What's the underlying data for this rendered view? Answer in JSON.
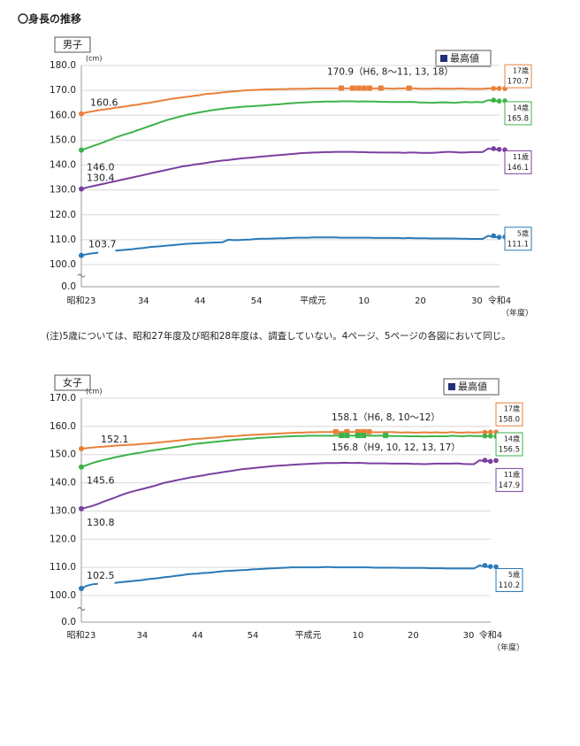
{
  "header": "〇身長の推移",
  "note": "(注)5歳については、昭和27年度及び昭和28年度は、調査していない。4ページ、5ページの各図において同じ。",
  "chart_data": [
    {
      "type": "line",
      "title": "男子",
      "y_unit": "(cm)",
      "x_unit": "（年度）",
      "max_legend": "最高値",
      "broken_axis": true,
      "grid": true,
      "ylim": [
        0,
        180
      ],
      "yticks": [
        {
          "value": 0,
          "label": "0.0"
        },
        {
          "value": 100,
          "label": "100.0"
        },
        {
          "value": 110,
          "label": "110.0"
        },
        {
          "value": 120,
          "label": "120.0"
        },
        {
          "value": 130,
          "label": "130.0"
        },
        {
          "value": 140,
          "label": "140.0"
        },
        {
          "value": 150,
          "label": "150.0"
        },
        {
          "value": 160,
          "label": "160.0"
        },
        {
          "value": 170,
          "label": "170.0"
        },
        {
          "value": 180,
          "label": "180.0"
        }
      ],
      "categories": [
        "昭和23",
        null,
        null,
        null,
        null,
        null,
        null,
        null,
        null,
        null,
        null,
        "34",
        null,
        null,
        null,
        null,
        null,
        null,
        null,
        null,
        null,
        "44",
        null,
        null,
        null,
        null,
        null,
        null,
        null,
        null,
        null,
        "54",
        null,
        null,
        null,
        null,
        null,
        null,
        null,
        null,
        null,
        "平成元",
        null,
        null,
        null,
        null,
        null,
        null,
        null,
        null,
        "10",
        null,
        null,
        null,
        null,
        null,
        null,
        null,
        null,
        null,
        "20",
        null,
        null,
        null,
        null,
        null,
        null,
        null,
        null,
        null,
        "30",
        null,
        null,
        null,
        "令和4"
      ],
      "series": [
        {
          "name": "17歳",
          "color": "#e8803a",
          "peak_note": "170.9（H6, 8～11, 13, 18）",
          "values": [
            160.6,
            161.2,
            161.6,
            162.0,
            162.3,
            162.6,
            163.0,
            163.3,
            163.6,
            164.0,
            164.3,
            164.7,
            165.0,
            165.4,
            165.8,
            166.2,
            166.6,
            166.9,
            167.2,
            167.5,
            167.8,
            168.1,
            168.5,
            168.7,
            168.9,
            169.2,
            169.4,
            169.6,
            169.8,
            170.0,
            170.1,
            170.2,
            170.3,
            170.4,
            170.4,
            170.5,
            170.5,
            170.6,
            170.6,
            170.7,
            170.7,
            170.8,
            170.8,
            170.8,
            170.8,
            170.8,
            170.9,
            170.8,
            170.9,
            170.9,
            170.9,
            170.9,
            170.8,
            170.9,
            170.8,
            170.7,
            170.8,
            170.8,
            170.9,
            170.8,
            170.7,
            170.7,
            170.7,
            170.8,
            170.7,
            170.7,
            170.7,
            170.8,
            170.7,
            170.6,
            170.6,
            170.6,
            170.8,
            170.8,
            170.7
          ]
        },
        {
          "name": "14歳",
          "color": "#3cb34a",
          "value_labels": {
            "0": "146.0"
          },
          "values": [
            146.0,
            146.8,
            147.6,
            148.4,
            149.2,
            150.1,
            151.0,
            151.8,
            152.5,
            153.2,
            154.0,
            154.8,
            155.6,
            156.4,
            157.2,
            158.0,
            158.6,
            159.2,
            159.8,
            160.3,
            160.8,
            161.2,
            161.6,
            162.0,
            162.3,
            162.6,
            162.9,
            163.1,
            163.3,
            163.5,
            163.6,
            163.8,
            163.9,
            164.1,
            164.3,
            164.4,
            164.6,
            164.8,
            165.0,
            165.1,
            165.2,
            165.3,
            165.4,
            165.5,
            165.5,
            165.5,
            165.6,
            165.6,
            165.6,
            165.5,
            165.6,
            165.5,
            165.5,
            165.4,
            165.4,
            165.3,
            165.3,
            165.3,
            165.4,
            165.3,
            165.1,
            165.1,
            165.0,
            165.1,
            165.2,
            165.1,
            165.0,
            165.2,
            165.3,
            165.2,
            165.3,
            165.2,
            166.1,
            165.7,
            165.8
          ]
        },
        {
          "name": "11歳",
          "color": "#7b3fa0",
          "values": [
            130.4,
            131.0,
            131.5,
            132.0,
            132.5,
            133.0,
            133.5,
            134.0,
            134.5,
            135.0,
            135.5,
            136.0,
            136.5,
            137.0,
            137.5,
            138.0,
            138.5,
            139.0,
            139.5,
            139.8,
            140.2,
            140.5,
            140.8,
            141.2,
            141.5,
            141.8,
            142.0,
            142.3,
            142.6,
            142.8,
            143.0,
            143.2,
            143.4,
            143.6,
            143.8,
            144.0,
            144.2,
            144.4,
            144.6,
            144.8,
            144.9,
            145.0,
            145.1,
            145.2,
            145.2,
            145.3,
            145.3,
            145.3,
            145.3,
            145.2,
            145.2,
            145.1,
            145.1,
            145.0,
            145.0,
            145.0,
            145.0,
            144.9,
            145.0,
            145.0,
            144.9,
            144.9,
            144.9,
            145.0,
            145.2,
            145.3,
            145.2,
            145.0,
            145.1,
            145.2,
            145.2,
            145.2,
            146.6,
            146.3,
            146.1
          ]
        },
        {
          "name": "5歳",
          "color": "#2a7ab8",
          "values": [
            103.7,
            104.2,
            104.5,
            104.8,
            null,
            null,
            105.6,
            105.8,
            106.0,
            106.2,
            106.5,
            106.7,
            107.0,
            107.2,
            107.4,
            107.6,
            107.8,
            108.0,
            108.2,
            108.4,
            108.5,
            108.6,
            108.7,
            108.8,
            108.9,
            109.0,
            110.0,
            109.8,
            109.9,
            110.0,
            110.1,
            110.3,
            110.4,
            110.4,
            110.5,
            110.6,
            110.6,
            110.7,
            110.8,
            110.8,
            110.8,
            110.9,
            110.9,
            110.9,
            110.9,
            110.9,
            110.8,
            110.8,
            110.8,
            110.8,
            110.8,
            110.8,
            110.7,
            110.7,
            110.7,
            110.7,
            110.7,
            110.6,
            110.7,
            110.6,
            110.6,
            110.6,
            110.5,
            110.5,
            110.5,
            110.5,
            110.5,
            110.4,
            110.4,
            110.3,
            110.3,
            110.3,
            111.6,
            111.0,
            111.1
          ]
        }
      ]
    },
    {
      "type": "line",
      "title": "女子",
      "y_unit": "(cm)",
      "x_unit": "（年度）",
      "max_legend": "最高値",
      "broken_axis": true,
      "grid": true,
      "ylim": [
        0,
        170
      ],
      "yticks": [
        {
          "value": 0,
          "label": "0.0"
        },
        {
          "value": 100,
          "label": "100.0"
        },
        {
          "value": 110,
          "label": "110.0"
        },
        {
          "value": 120,
          "label": "120.0"
        },
        {
          "value": 130,
          "label": "130.0"
        },
        {
          "value": 140,
          "label": "140.0"
        },
        {
          "value": 150,
          "label": "150.0"
        },
        {
          "value": 160,
          "label": "160.0"
        },
        {
          "value": 170,
          "label": "170.0"
        }
      ],
      "categories": [
        "昭和23",
        null,
        null,
        null,
        null,
        null,
        null,
        null,
        null,
        null,
        null,
        "34",
        null,
        null,
        null,
        null,
        null,
        null,
        null,
        null,
        null,
        "44",
        null,
        null,
        null,
        null,
        null,
        null,
        null,
        null,
        null,
        "54",
        null,
        null,
        null,
        null,
        null,
        null,
        null,
        null,
        null,
        "平成元",
        null,
        null,
        null,
        null,
        null,
        null,
        null,
        null,
        "10",
        null,
        null,
        null,
        null,
        null,
        null,
        null,
        null,
        null,
        "20",
        null,
        null,
        null,
        null,
        null,
        null,
        null,
        null,
        null,
        "30",
        null,
        null,
        null,
        "令和4"
      ],
      "series": [
        {
          "name": "17歳",
          "color": "#e8803a",
          "peak_note": "158.1（H6, 8, 10～12）",
          "value_labels": {
            "74": "158.0"
          },
          "values": [
            152.1,
            152.3,
            152.5,
            152.7,
            152.8,
            153.0,
            153.1,
            153.3,
            153.4,
            153.5,
            153.6,
            153.8,
            153.9,
            154.1,
            154.3,
            154.5,
            154.7,
            154.9,
            155.1,
            155.3,
            155.5,
            155.6,
            155.7,
            155.9,
            156.0,
            156.2,
            156.4,
            156.5,
            156.6,
            156.8,
            156.9,
            157.0,
            157.1,
            157.2,
            157.3,
            157.4,
            157.5,
            157.6,
            157.7,
            157.8,
            157.8,
            157.9,
            157.9,
            158.0,
            158.0,
            158.0,
            158.1,
            158.0,
            158.1,
            158.0,
            158.1,
            158.1,
            158.1,
            157.9,
            157.9,
            158.0,
            158.0,
            157.9,
            157.8,
            157.9,
            157.8,
            157.8,
            157.9,
            157.8,
            157.9,
            157.8,
            157.8,
            158.0,
            157.8,
            157.8,
            157.9,
            157.8,
            157.9,
            158.0,
            158.0
          ]
        },
        {
          "name": "14歳",
          "color": "#3cb34a",
          "peak_note": "156.8（H9, 10, 12, 13, 17）",
          "values": [
            145.6,
            146.3,
            147.0,
            147.6,
            148.1,
            148.5,
            149.0,
            149.4,
            149.8,
            150.2,
            150.5,
            150.8,
            151.2,
            151.5,
            151.8,
            152.1,
            152.4,
            152.7,
            153.0,
            153.3,
            153.6,
            153.9,
            154.1,
            154.3,
            154.5,
            154.7,
            154.9,
            155.1,
            155.3,
            155.4,
            155.6,
            155.7,
            155.9,
            156.0,
            156.1,
            156.2,
            156.3,
            156.4,
            156.5,
            156.6,
            156.6,
            156.7,
            156.7,
            156.7,
            156.7,
            156.7,
            156.7,
            156.8,
            156.8,
            156.7,
            156.8,
            156.8,
            156.7,
            156.7,
            156.7,
            156.8,
            156.6,
            156.6,
            156.6,
            156.5,
            156.5,
            156.5,
            156.4,
            156.5,
            156.5,
            156.5,
            156.5,
            156.7,
            156.6,
            156.5,
            156.7,
            156.6,
            156.6,
            156.6,
            156.5
          ]
        },
        {
          "name": "11歳",
          "color": "#7b3fa0",
          "values": [
            130.8,
            131.3,
            131.8,
            132.5,
            133.3,
            134.0,
            134.7,
            135.5,
            136.2,
            136.8,
            137.3,
            137.8,
            138.3,
            138.8,
            139.4,
            140.0,
            140.4,
            140.8,
            141.2,
            141.6,
            142.0,
            142.3,
            142.6,
            143.0,
            143.3,
            143.6,
            143.9,
            144.2,
            144.5,
            144.8,
            145.0,
            145.2,
            145.4,
            145.6,
            145.8,
            146.0,
            146.1,
            146.2,
            146.4,
            146.5,
            146.6,
            146.7,
            146.8,
            146.9,
            147.0,
            147.0,
            147.0,
            147.1,
            147.1,
            147.0,
            147.1,
            147.0,
            146.9,
            146.9,
            146.9,
            146.9,
            146.8,
            146.8,
            146.8,
            146.8,
            146.7,
            146.7,
            146.6,
            146.7,
            146.8,
            146.8,
            146.8,
            146.8,
            146.9,
            146.7,
            146.6,
            146.6,
            148.0,
            147.6,
            147.9
          ]
        },
        {
          "name": "5歳",
          "color": "#2a7ab8",
          "values": [
            102.5,
            103.5,
            104.0,
            104.2,
            null,
            null,
            104.5,
            104.7,
            104.9,
            105.1,
            105.3,
            105.5,
            105.8,
            106.0,
            106.2,
            106.5,
            106.7,
            107.0,
            107.2,
            107.5,
            107.7,
            107.8,
            108.0,
            108.1,
            108.3,
            108.5,
            108.7,
            108.8,
            108.9,
            109.0,
            109.1,
            109.3,
            109.4,
            109.5,
            109.6,
            109.7,
            109.8,
            109.9,
            110.0,
            110.0,
            110.0,
            110.0,
            110.0,
            110.0,
            110.1,
            110.1,
            110.0,
            110.0,
            110.0,
            110.0,
            110.0,
            110.0,
            110.0,
            109.9,
            109.9,
            109.9,
            109.9,
            109.9,
            109.8,
            109.8,
            109.8,
            109.8,
            109.8,
            109.7,
            109.7,
            109.7,
            109.6,
            109.6,
            109.6,
            109.6,
            109.6,
            109.6,
            110.7,
            110.3,
            110.2
          ]
        }
      ]
    }
  ]
}
